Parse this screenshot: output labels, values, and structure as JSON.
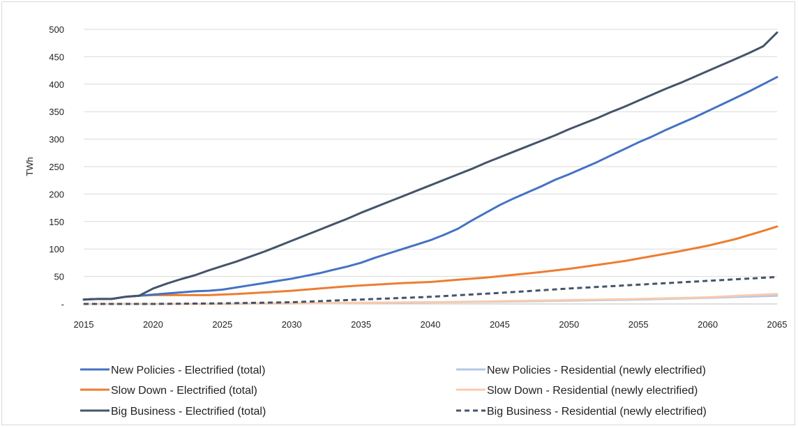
{
  "chart_data": {
    "type": "line",
    "title": "",
    "xlabel": "",
    "ylabel": "TWh",
    "xlim": [
      2015,
      2065
    ],
    "ylim": [
      0,
      500
    ],
    "x_ticks": [
      "2015",
      "2020",
      "2025",
      "2030",
      "2035",
      "2040",
      "2045",
      "2050",
      "2055",
      "2060",
      "2065"
    ],
    "y_ticks": [
      "-",
      "50",
      "100",
      "150",
      "200",
      "250",
      "300",
      "350",
      "400",
      "450",
      "500"
    ],
    "y_tick_values": [
      0,
      50,
      100,
      150,
      200,
      250,
      300,
      350,
      400,
      450,
      500
    ],
    "grid": "horizontal",
    "legend_position": "bottom",
    "series": [
      {
        "name": "New Policies - Electrified (total)",
        "color": "#4472C4",
        "style": "solid",
        "x": [
          2015,
          2016,
          2017,
          2018,
          2019,
          2020,
          2021,
          2022,
          2023,
          2024,
          2025,
          2026,
          2027,
          2028,
          2029,
          2030,
          2031,
          2032,
          2033,
          2034,
          2035,
          2036,
          2037,
          2038,
          2039,
          2040,
          2041,
          2042,
          2043,
          2044,
          2045,
          2046,
          2047,
          2048,
          2049,
          2050,
          2051,
          2052,
          2053,
          2054,
          2055,
          2056,
          2057,
          2058,
          2059,
          2060,
          2061,
          2062,
          2063,
          2064,
          2065
        ],
        "values": [
          8,
          9,
          9,
          13,
          15,
          17,
          19,
          21,
          23,
          24,
          26,
          30,
          34,
          38,
          42,
          46,
          51,
          56,
          62,
          68,
          75,
          84,
          92,
          100,
          108,
          116,
          126,
          137,
          152,
          166,
          180,
          192,
          203,
          214,
          226,
          236,
          247,
          258,
          270,
          282,
          294,
          305,
          317,
          328,
          339,
          351,
          363,
          375,
          387,
          400,
          413
        ]
      },
      {
        "name": "New Policies - Residential (newly electrified)",
        "color": "#B4C7E7",
        "style": "solid",
        "x": [
          2015,
          2020,
          2025,
          2030,
          2035,
          2040,
          2045,
          2050,
          2055,
          2060,
          2065
        ],
        "values": [
          0,
          0,
          0,
          1,
          2,
          3,
          4,
          6,
          8,
          11,
          15
        ]
      },
      {
        "name": "Slow Down - Electrified (total)",
        "color": "#ED7D31",
        "style": "solid",
        "x": [
          2015,
          2016,
          2017,
          2018,
          2019,
          2020,
          2022,
          2024,
          2026,
          2028,
          2030,
          2032,
          2034,
          2036,
          2038,
          2040,
          2042,
          2044,
          2046,
          2048,
          2050,
          2052,
          2054,
          2056,
          2058,
          2060,
          2062,
          2064,
          2065
        ],
        "values": [
          8,
          9,
          9,
          13,
          15,
          16,
          16,
          16,
          18,
          21,
          24,
          28,
          32,
          35,
          38,
          40,
          44,
          48,
          53,
          58,
          64,
          71,
          78,
          87,
          96,
          106,
          118,
          133,
          141
        ]
      },
      {
        "name": "Slow Down - Residential (newly electrified)",
        "color": "#F8CBAD",
        "style": "solid",
        "x": [
          2015,
          2020,
          2025,
          2030,
          2035,
          2040,
          2045,
          2050,
          2055,
          2060,
          2065
        ],
        "values": [
          0,
          0,
          0,
          1,
          2,
          3,
          5,
          7,
          9,
          12,
          18
        ]
      },
      {
        "name": "Big Business - Electrified (total)",
        "color": "#44546A",
        "style": "solid",
        "x": [
          2015,
          2016,
          2017,
          2018,
          2019,
          2020,
          2021,
          2022,
          2023,
          2024,
          2025,
          2026,
          2027,
          2028,
          2029,
          2030,
          2031,
          2032,
          2033,
          2034,
          2035,
          2036,
          2037,
          2038,
          2039,
          2040,
          2041,
          2042,
          2043,
          2044,
          2045,
          2046,
          2047,
          2048,
          2049,
          2050,
          2051,
          2052,
          2053,
          2054,
          2055,
          2056,
          2057,
          2058,
          2059,
          2060,
          2061,
          2062,
          2063,
          2064,
          2065
        ],
        "values": [
          8,
          9,
          9,
          13,
          15,
          28,
          37,
          45,
          52,
          61,
          69,
          77,
          86,
          95,
          105,
          115,
          125,
          135,
          145,
          155,
          166,
          176,
          186,
          196,
          206,
          216,
          226,
          236,
          246,
          257,
          267,
          277,
          287,
          297,
          307,
          318,
          328,
          338,
          349,
          359,
          370,
          381,
          392,
          402,
          413,
          424,
          435,
          446,
          457,
          469,
          494
        ]
      },
      {
        "name": "Big Business - Residential (newly electrified)",
        "color": "#44546A",
        "style": "dashed",
        "x": [
          2015,
          2020,
          2025,
          2030,
          2035,
          2040,
          2045,
          2050,
          2055,
          2060,
          2065
        ],
        "values": [
          0,
          0,
          1,
          3,
          8,
          13,
          20,
          28,
          35,
          42,
          49
        ]
      }
    ]
  }
}
